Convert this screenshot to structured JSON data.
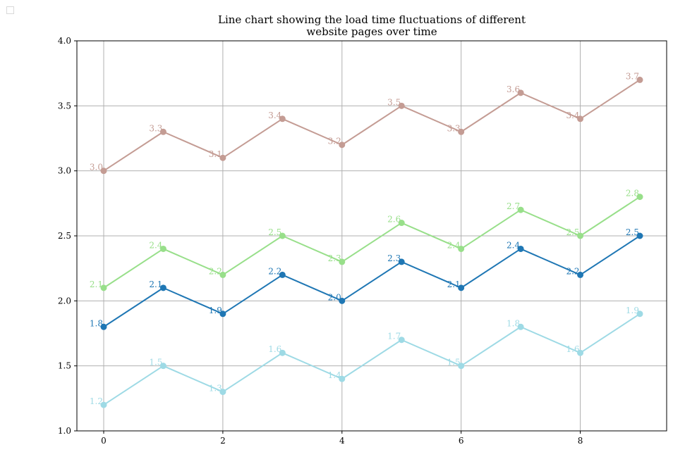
{
  "chart_data": {
    "type": "line",
    "title_lines": [
      "Line chart showing the load time fluctuations of different",
      "website pages over time"
    ],
    "xlabel": "",
    "ylabel": "",
    "x": [
      0,
      1,
      2,
      3,
      4,
      5,
      6,
      7,
      8,
      9
    ],
    "xlim": [
      -0.45,
      9.45
    ],
    "ylim": [
      1.0,
      4.0
    ],
    "xticks": [
      0,
      2,
      4,
      6,
      8
    ],
    "yticks": [
      1.0,
      1.5,
      2.0,
      2.5,
      3.0,
      3.5,
      4.0
    ],
    "ytick_labels": [
      "1.0",
      "1.5",
      "2.0",
      "2.5",
      "3.0",
      "3.5",
      "4.0"
    ],
    "grid": true,
    "legend": "none",
    "series": [
      {
        "color": "#c49c94",
        "values": [
          3.0,
          3.3,
          3.1,
          3.4,
          3.2,
          3.5,
          3.3,
          3.6,
          3.4,
          3.7
        ]
      },
      {
        "color": "#98df8a",
        "values": [
          2.1,
          2.4,
          2.2,
          2.5,
          2.3,
          2.6,
          2.4,
          2.7,
          2.5,
          2.8
        ]
      },
      {
        "color": "#1f77b4",
        "values": [
          1.8,
          2.1,
          1.9,
          2.2,
          2.0,
          2.3,
          2.1,
          2.4,
          2.2,
          2.5
        ]
      },
      {
        "color": "#9edae5",
        "values": [
          1.2,
          1.5,
          1.3,
          1.6,
          1.4,
          1.7,
          1.5,
          1.8,
          1.6,
          1.9
        ]
      }
    ]
  }
}
